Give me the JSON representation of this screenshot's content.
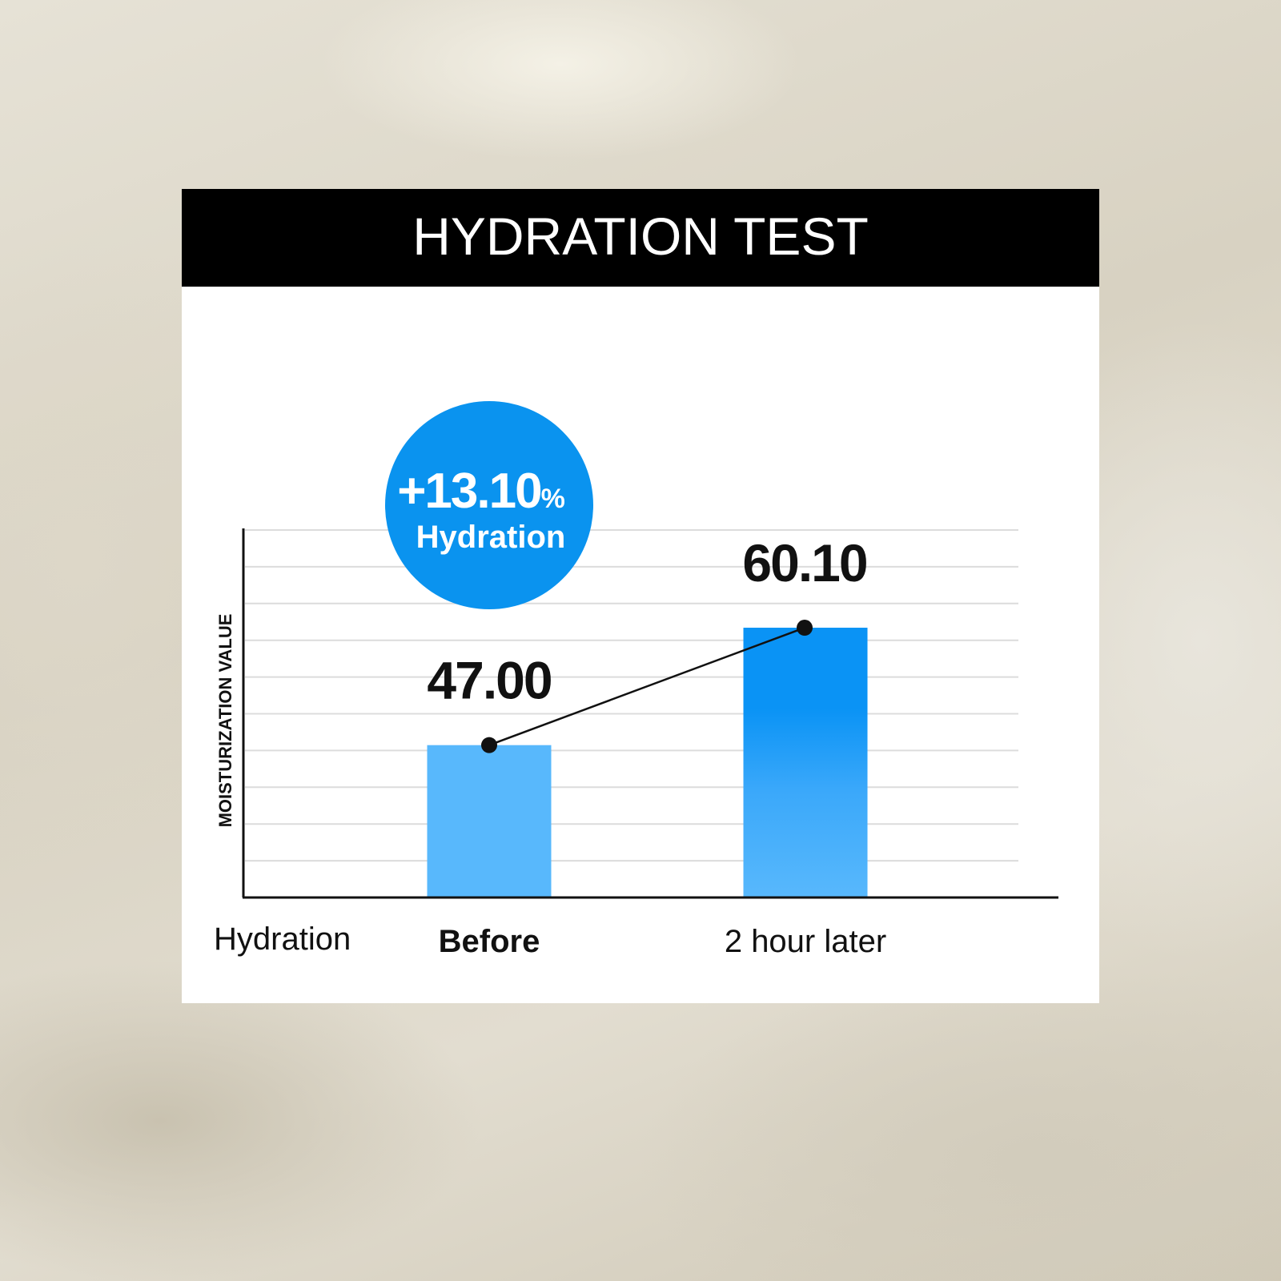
{
  "title": "HYDRATION TEST",
  "badge": {
    "value": "+13.10",
    "unit": "%",
    "label": "Hydration",
    "color": "#0a93ef"
  },
  "chart_data": {
    "type": "bar",
    "title": "HYDRATION TEST",
    "xlabel": "Hydration",
    "ylabel": "MOISTURIZATION VALUE",
    "categories": [
      "Before",
      "2 hour later"
    ],
    "values": [
      47.0,
      60.1
    ],
    "data_labels": [
      "47.00",
      "60.10"
    ],
    "ylim": [
      30,
      71
    ],
    "grid": true,
    "connecting_line": true,
    "colors": {
      "before": "#58b8fc",
      "after_top": "#0a93f5",
      "after_bottom": "#58b8fc",
      "header": "#000000"
    }
  }
}
